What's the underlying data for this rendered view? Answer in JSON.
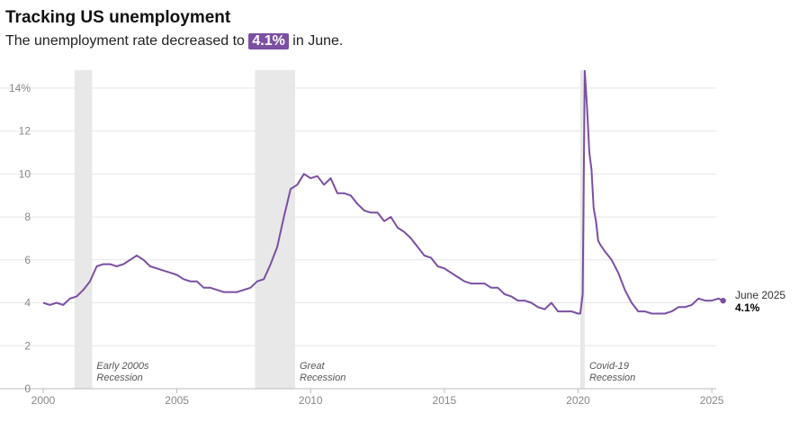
{
  "header": {
    "title": "Tracking US unemployment",
    "subtitle_prefix": "The unemployment rate decreased to ",
    "subtitle_value": "4.1%",
    "subtitle_suffix": " in June."
  },
  "colors": {
    "line": "#7b4fa2",
    "recession_band": "#e8e8e8",
    "grid": "#e6e6e6",
    "axis": "#bbbbbb"
  },
  "chart_data": {
    "type": "line",
    "title": "Tracking US unemployment",
    "xlim": [
      2000,
      2025.5
    ],
    "ylim": [
      0,
      15
    ],
    "x_ticks": [
      2000,
      2005,
      2010,
      2015,
      2020,
      2025
    ],
    "x_tick_labels": [
      "2000",
      "2005",
      "2010",
      "2015",
      "2020",
      "2025"
    ],
    "y_ticks": [
      0,
      2,
      4,
      6,
      8,
      10,
      12,
      14
    ],
    "y_tick_labels": [
      "0",
      "2",
      "4",
      "6",
      "8",
      "10",
      "12",
      "14%"
    ],
    "grid": true,
    "recessions": [
      {
        "start": 2001.17,
        "end": 2001.83,
        "label_line1": "Early 2000s",
        "label_line2": "Recession"
      },
      {
        "start": 2007.92,
        "end": 2009.42,
        "label_line1": "Great",
        "label_line2": "Recession"
      },
      {
        "start": 2020.08,
        "end": 2020.25,
        "label_line1": "Covid-19",
        "label_line2": "Recession"
      }
    ],
    "series": [
      {
        "x": [
          2000.0,
          2000.25,
          2000.5,
          2000.75,
          2001.0,
          2001.25,
          2001.5,
          2001.75,
          2002.0,
          2002.25,
          2002.5,
          2002.75,
          2003.0,
          2003.25,
          2003.5,
          2003.75,
          2004.0,
          2004.25,
          2004.5,
          2004.75,
          2005.0,
          2005.25,
          2005.5,
          2005.75,
          2006.0,
          2006.25,
          2006.5,
          2006.75,
          2007.0,
          2007.25,
          2007.5,
          2007.75,
          2008.0,
          2008.25,
          2008.5,
          2008.75,
          2009.0,
          2009.25,
          2009.5,
          2009.75,
          2010.0,
          2010.25,
          2010.5,
          2010.75,
          2011.0,
          2011.25,
          2011.5,
          2011.75,
          2012.0,
          2012.25,
          2012.5,
          2012.75,
          2013.0,
          2013.25,
          2013.5,
          2013.75,
          2014.0,
          2014.25,
          2014.5,
          2014.75,
          2015.0,
          2015.25,
          2015.5,
          2015.75,
          2016.0,
          2016.25,
          2016.5,
          2016.75,
          2017.0,
          2017.25,
          2017.5,
          2017.75,
          2018.0,
          2018.25,
          2018.5,
          2018.75,
          2019.0,
          2019.25,
          2019.5,
          2019.75,
          2020.0,
          2020.08,
          2020.17,
          2020.25,
          2020.33,
          2020.42,
          2020.5,
          2020.58,
          2020.67,
          2020.75,
          2020.83,
          2021.0,
          2021.25,
          2021.5,
          2021.75,
          2022.0,
          2022.25,
          2022.5,
          2022.75,
          2023.0,
          2023.25,
          2023.5,
          2023.75,
          2024.0,
          2024.25,
          2024.5,
          2024.75,
          2025.0,
          2025.25,
          2025.42
        ],
        "values": [
          4.0,
          3.9,
          4.0,
          3.9,
          4.2,
          4.3,
          4.6,
          5.0,
          5.7,
          5.8,
          5.8,
          5.7,
          5.8,
          6.0,
          6.2,
          6.0,
          5.7,
          5.6,
          5.5,
          5.4,
          5.3,
          5.1,
          5.0,
          5.0,
          4.7,
          4.7,
          4.6,
          4.5,
          4.5,
          4.5,
          4.6,
          4.7,
          5.0,
          5.1,
          5.8,
          6.6,
          8.0,
          9.3,
          9.5,
          10.0,
          9.8,
          9.9,
          9.5,
          9.8,
          9.1,
          9.1,
          9.0,
          8.6,
          8.3,
          8.2,
          8.2,
          7.8,
          8.0,
          7.5,
          7.3,
          7.0,
          6.6,
          6.2,
          6.1,
          5.7,
          5.6,
          5.4,
          5.2,
          5.0,
          4.9,
          4.9,
          4.9,
          4.7,
          4.7,
          4.4,
          4.3,
          4.1,
          4.1,
          4.0,
          3.8,
          3.7,
          4.0,
          3.6,
          3.6,
          3.6,
          3.5,
          3.5,
          4.4,
          14.8,
          13.2,
          11.0,
          10.2,
          8.4,
          7.8,
          6.9,
          6.7,
          6.4,
          6.0,
          5.4,
          4.6,
          4.0,
          3.6,
          3.6,
          3.5,
          3.5,
          3.5,
          3.6,
          3.8,
          3.8,
          3.9,
          4.2,
          4.1,
          4.1,
          4.2,
          4.1
        ]
      }
    ],
    "end_label": {
      "date": "June 2025",
      "value": "4.1%",
      "x": 2025.42,
      "y": 4.1
    }
  }
}
